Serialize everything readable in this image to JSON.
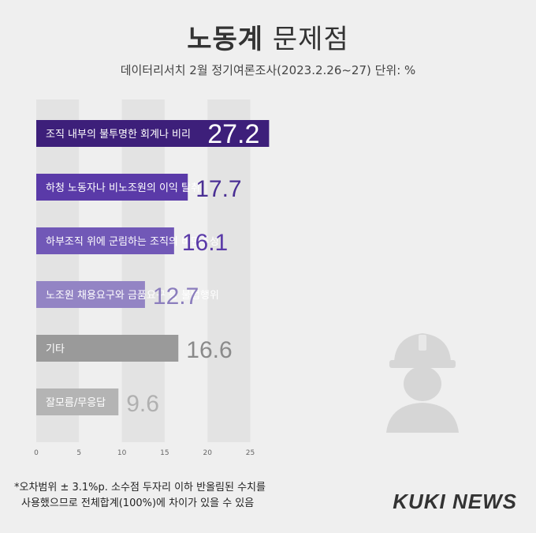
{
  "header": {
    "title_bold": "노동계",
    "title_light": "문제점",
    "subtitle": "데이터리서치 2월 정기여론조사(2023.2.26~27) 단위: %"
  },
  "chart_data": {
    "type": "bar",
    "orientation": "horizontal",
    "categories": [
      "조직 내부의 불투명한 회계나 비리",
      "하청 노동자나 비노조원의 이익 탈취",
      "하부조직 위에 군림하는 조직의 비민주성",
      "노조원 채용요구와 금품요구 등 불법행위",
      "기타",
      "잘모름/무응답"
    ],
    "values": [
      27.2,
      17.7,
      16.1,
      12.7,
      16.6,
      9.6
    ],
    "value_labels": [
      "27.2",
      "17.7",
      "16.1",
      "12.7",
      "16.6",
      "9.6"
    ],
    "colors": [
      "#3d1f7a",
      "#5a3aa8",
      "#7158b7",
      "#9384c4",
      "#9a9a9a",
      "#b4b4b4"
    ],
    "label_colors": [
      "#ffffff",
      "#4a2f94",
      "#5a3aa8",
      "#8b7dbd",
      "#8a8a8a",
      "#b0b0b0"
    ],
    "xlim": [
      0,
      25
    ],
    "xticks": [
      "0",
      "5",
      "10",
      "15",
      "20",
      "25"
    ],
    "grid": "alternating-bands",
    "icon": "worker-helmet-icon"
  },
  "footnote": {
    "line1": "*오차범위 ± 3.1%p. 소수점 두자리 이하 반올림된 수치를",
    "line2": "사용했으므로 전체합계(100%)에 차이가 있을 수 있음"
  },
  "brand": "KUKI NEWS"
}
